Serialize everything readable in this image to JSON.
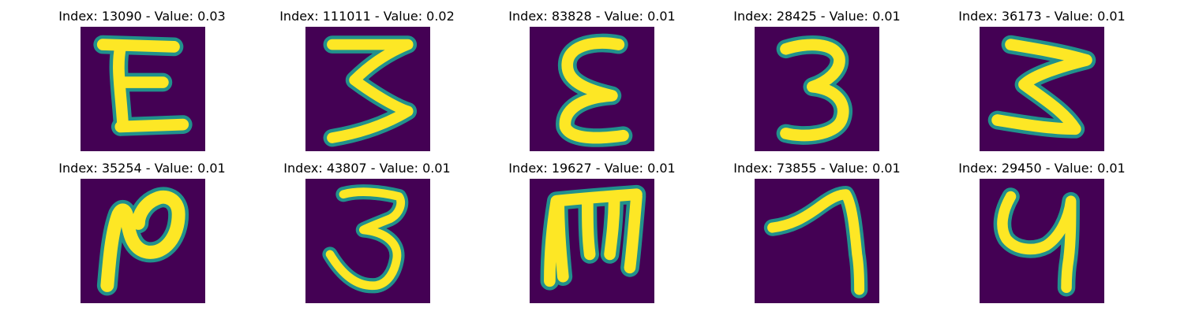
{
  "colors": {
    "background": "#440154",
    "glow": "#21918c",
    "mid": "#7ad151",
    "core": "#fde725"
  },
  "panels": [
    {
      "title": "Index: 13090 - Value: 0.03",
      "glyph": "E-shape-icon"
    },
    {
      "title": "Index: 111011 - Value: 0.02",
      "glyph": "3-shape-icon"
    },
    {
      "title": "Index: 83828 - Value: 0.01",
      "glyph": "epsilon-shape-icon"
    },
    {
      "title": "Index: 28425 - Value: 0.01",
      "glyph": "3-shape-icon"
    },
    {
      "title": "Index: 36173 - Value: 0.01",
      "glyph": "3-shape-icon"
    },
    {
      "title": "Index: 35254 - Value: 0.01",
      "glyph": "N-shape-icon"
    },
    {
      "title": "Index: 43807 - Value: 0.01",
      "glyph": "3-shape-icon"
    },
    {
      "title": "Index: 19627 - Value: 0.01",
      "glyph": "m-shape-icon"
    },
    {
      "title": "Index: 73855 - Value: 0.01",
      "glyph": "7-shape-icon"
    },
    {
      "title": "Index: 29450 - Value: 0.01",
      "glyph": "y-shape-icon"
    }
  ]
}
